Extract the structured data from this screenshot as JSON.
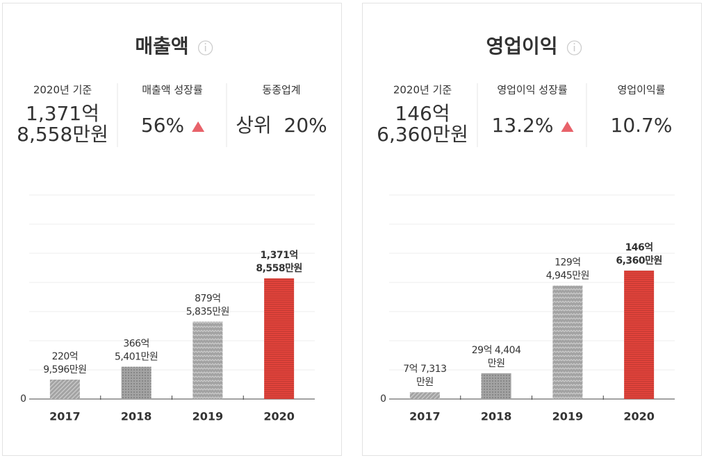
{
  "chart_data": [
    {
      "type": "bar",
      "title": "매출액",
      "categories": [
        "2017",
        "2018",
        "2019",
        "2020"
      ],
      "values": [
        220.9596,
        366.5401,
        879.5835,
        1371.8558
      ],
      "value_labels": [
        [
          "220억",
          "9,596만원"
        ],
        [
          "366억",
          "5,401만원"
        ],
        [
          "879억",
          "5,835만원"
        ],
        [
          "1,371억",
          "8,558만원"
        ]
      ],
      "colors": [
        "#a3a3a3",
        "#a3a3a3",
        "#a3a3a3",
        "#e2433b"
      ],
      "patterns": [
        "diagonal",
        "dots",
        "zigzag",
        "stripes"
      ],
      "highlight_index": 3,
      "ylim": [
        0,
        2320
      ],
      "yticks": [
        0
      ],
      "grid": true
    },
    {
      "type": "bar",
      "title": "영업이익",
      "categories": [
        "2017",
        "2018",
        "2019",
        "2020"
      ],
      "values": [
        7.7313,
        29.4404,
        129.4945,
        146.636
      ],
      "value_labels": [
        [
          "7억 7,313",
          "만원"
        ],
        [
          "29억 4,404",
          "만원"
        ],
        [
          "129억",
          "4,945만원"
        ],
        [
          "146억",
          "6,360만원"
        ]
      ],
      "colors": [
        "#a3a3a3",
        "#a3a3a3",
        "#a3a3a3",
        "#e2433b"
      ],
      "patterns": [
        "diagonal",
        "dots",
        "zigzag",
        "stripes"
      ],
      "highlight_index": 3,
      "ylim": [
        0,
        233
      ],
      "yticks": [
        0
      ],
      "grid": true
    }
  ],
  "stats": [
    [
      {
        "label": "2020년 기준",
        "value": [
          "1,371억",
          "8,558만원"
        ]
      },
      {
        "label": "매출액 성장률",
        "value": [
          "56%"
        ],
        "trend": "up"
      },
      {
        "label": "동종업계",
        "value": [
          "상위  20%"
        ]
      }
    ],
    [
      {
        "label": "2020년 기준",
        "value": [
          "146억",
          "6,360만원"
        ]
      },
      {
        "label": "영업이익 성장률",
        "value": [
          "13.2%"
        ],
        "trend": "up"
      },
      {
        "label": "영업이익률",
        "value": [
          "10.7%"
        ]
      }
    ]
  ]
}
